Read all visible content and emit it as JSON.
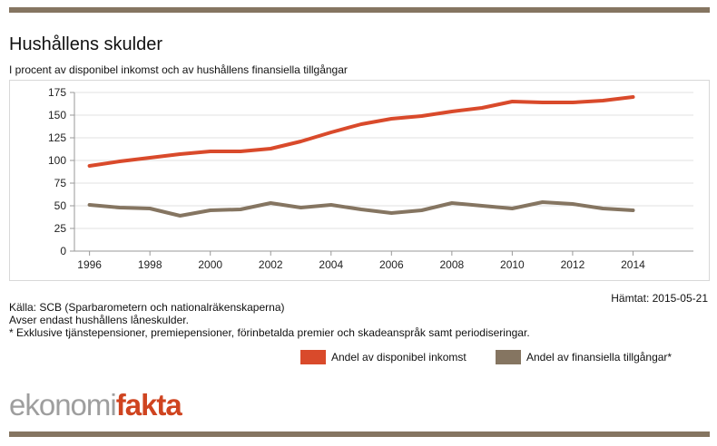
{
  "header": {
    "title": "Hushållens skulder",
    "subtitle": "I procent av disponibel inkomst och av hushållens finansiella tillgångar"
  },
  "chart_data": {
    "type": "line",
    "title": "Hushållens skulder",
    "subtitle": "I procent av disponibel inkomst och av hushållens finansiella tillgångar",
    "xlabel": "",
    "ylabel": "",
    "x": [
      1996,
      1997,
      1998,
      1999,
      2000,
      2001,
      2002,
      2003,
      2004,
      2005,
      2006,
      2007,
      2008,
      2009,
      2010,
      2011,
      2012,
      2013,
      2014
    ],
    "xticks": [
      1996,
      1998,
      2000,
      2002,
      2004,
      2006,
      2008,
      2010,
      2012,
      2014
    ],
    "yticks": [
      0,
      25,
      50,
      75,
      100,
      125,
      150,
      175
    ],
    "ylim": [
      0,
      175
    ],
    "xlim": [
      1995.5,
      2016
    ],
    "grid": true,
    "legend_position": "bottom-right",
    "series": [
      {
        "name": "Andel av disponibel inkomst",
        "color": "#d94a2b",
        "values": [
          94,
          99,
          103,
          107,
          110,
          110,
          113,
          121,
          131,
          140,
          146,
          149,
          154,
          158,
          165,
          164,
          164,
          166,
          170
        ]
      },
      {
        "name": "Andel av finansiella tillgångar*",
        "color": "#857561",
        "values": [
          51,
          48,
          47,
          39,
          45,
          46,
          53,
          48,
          51,
          46,
          42,
          45,
          53,
          50,
          47,
          54,
          52,
          47,
          45
        ]
      }
    ]
  },
  "notes": {
    "source": "Källa: SCB (Sparbarometern och nationalräkenskaperna)",
    "note1": "Avser endast hushållens låneskulder.",
    "note2": "* Exklusive tjänstepensioner, premiepensioner, förinbetalda premier och skadeanspråk samt periodiseringar.",
    "fetched": "Hämtat: 2015-05-21"
  },
  "legend": {
    "item1": "Andel av disponibel inkomst",
    "item2": "Andel av finansiella tillgångar*"
  },
  "logo": {
    "part1": "ekonomi",
    "part2": "fakta"
  },
  "colors": {
    "bar": "#857561",
    "accent": "#d94a2b",
    "secondary": "#857561"
  }
}
